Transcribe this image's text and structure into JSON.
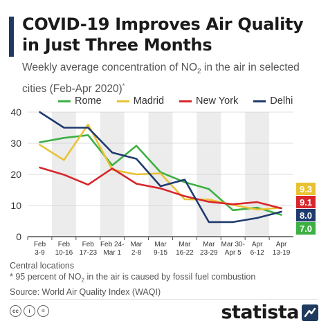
{
  "header": {
    "title": "COVID-19 Improves Air Quality in Just Three Months",
    "subtitle_pre": "Weekly average concentration of NO",
    "subtitle_sub": "2",
    "subtitle_post": " in the air in selected cities (Feb-Apr 2020)",
    "subtitle_mark": "*"
  },
  "footer": {
    "note1": "Central locations",
    "note2_pre": "* 95 percent of NO",
    "note2_sub": "2",
    "note2_post": " in the air is caused by fossil fuel combustion",
    "source": "Source: World Air Quality Index (WAQI)",
    "logo_text": "statista",
    "cc_icons": [
      "cc-icon",
      "by-icon",
      "nd-icon"
    ]
  },
  "chart_data": {
    "type": "line",
    "categories": [
      [
        "Feb",
        "3-9"
      ],
      [
        "Feb",
        "10-16"
      ],
      [
        "Feb",
        "17-23"
      ],
      [
        "Feb 24-",
        "Mar 1"
      ],
      [
        "Mar",
        "2-8"
      ],
      [
        "Mar",
        "9-15"
      ],
      [
        "Mar",
        "16-22"
      ],
      [
        "Mar",
        "23-29"
      ],
      [
        "Mar 30-",
        "Apr 5"
      ],
      [
        "Apr",
        "6-12"
      ],
      [
        "Apr",
        "13-19"
      ]
    ],
    "ylim": [
      0,
      40
    ],
    "yticks": [
      0,
      10,
      20,
      30,
      40
    ],
    "grid": "vertical alternating bands",
    "legend_position": "top",
    "series": [
      {
        "name": "Rome",
        "color": "#3cb043",
        "values": [
          30.3,
          31.7,
          32.6,
          22.9,
          29.2,
          20.7,
          17.5,
          15.3,
          8.5,
          9.3,
          7.0
        ]
      },
      {
        "name": "Madrid",
        "color": "#e8c233",
        "values": [
          29.5,
          24.6,
          36.0,
          21.5,
          20.0,
          20.3,
          12.0,
          11.9,
          10.2,
          8.7,
          9.3
        ]
      },
      {
        "name": "New York",
        "color": "#d7262c",
        "values": [
          22.2,
          19.9,
          16.7,
          21.9,
          17.0,
          15.5,
          13.0,
          11.2,
          10.4,
          11.1,
          9.1
        ]
      },
      {
        "name": "Delhi",
        "color": "#1f3a6e",
        "values": [
          40.0,
          35.0,
          35.0,
          27.0,
          25.0,
          16.2,
          18.3,
          4.7,
          4.7,
          6.0,
          8.0
        ]
      }
    ],
    "end_labels": [
      {
        "series": "Madrid",
        "text": "9.3",
        "bg": "#e8c233",
        "fg": "#ffffff"
      },
      {
        "series": "New York",
        "text": "9.1",
        "bg": "#d7262c",
        "fg": "#ffffff"
      },
      {
        "series": "Delhi",
        "text": "8.0",
        "bg": "#1f3a6e",
        "fg": "#ffffff"
      },
      {
        "series": "Rome",
        "text": "7.0",
        "bg": "#3cb043",
        "fg": "#ffffff"
      }
    ]
  }
}
